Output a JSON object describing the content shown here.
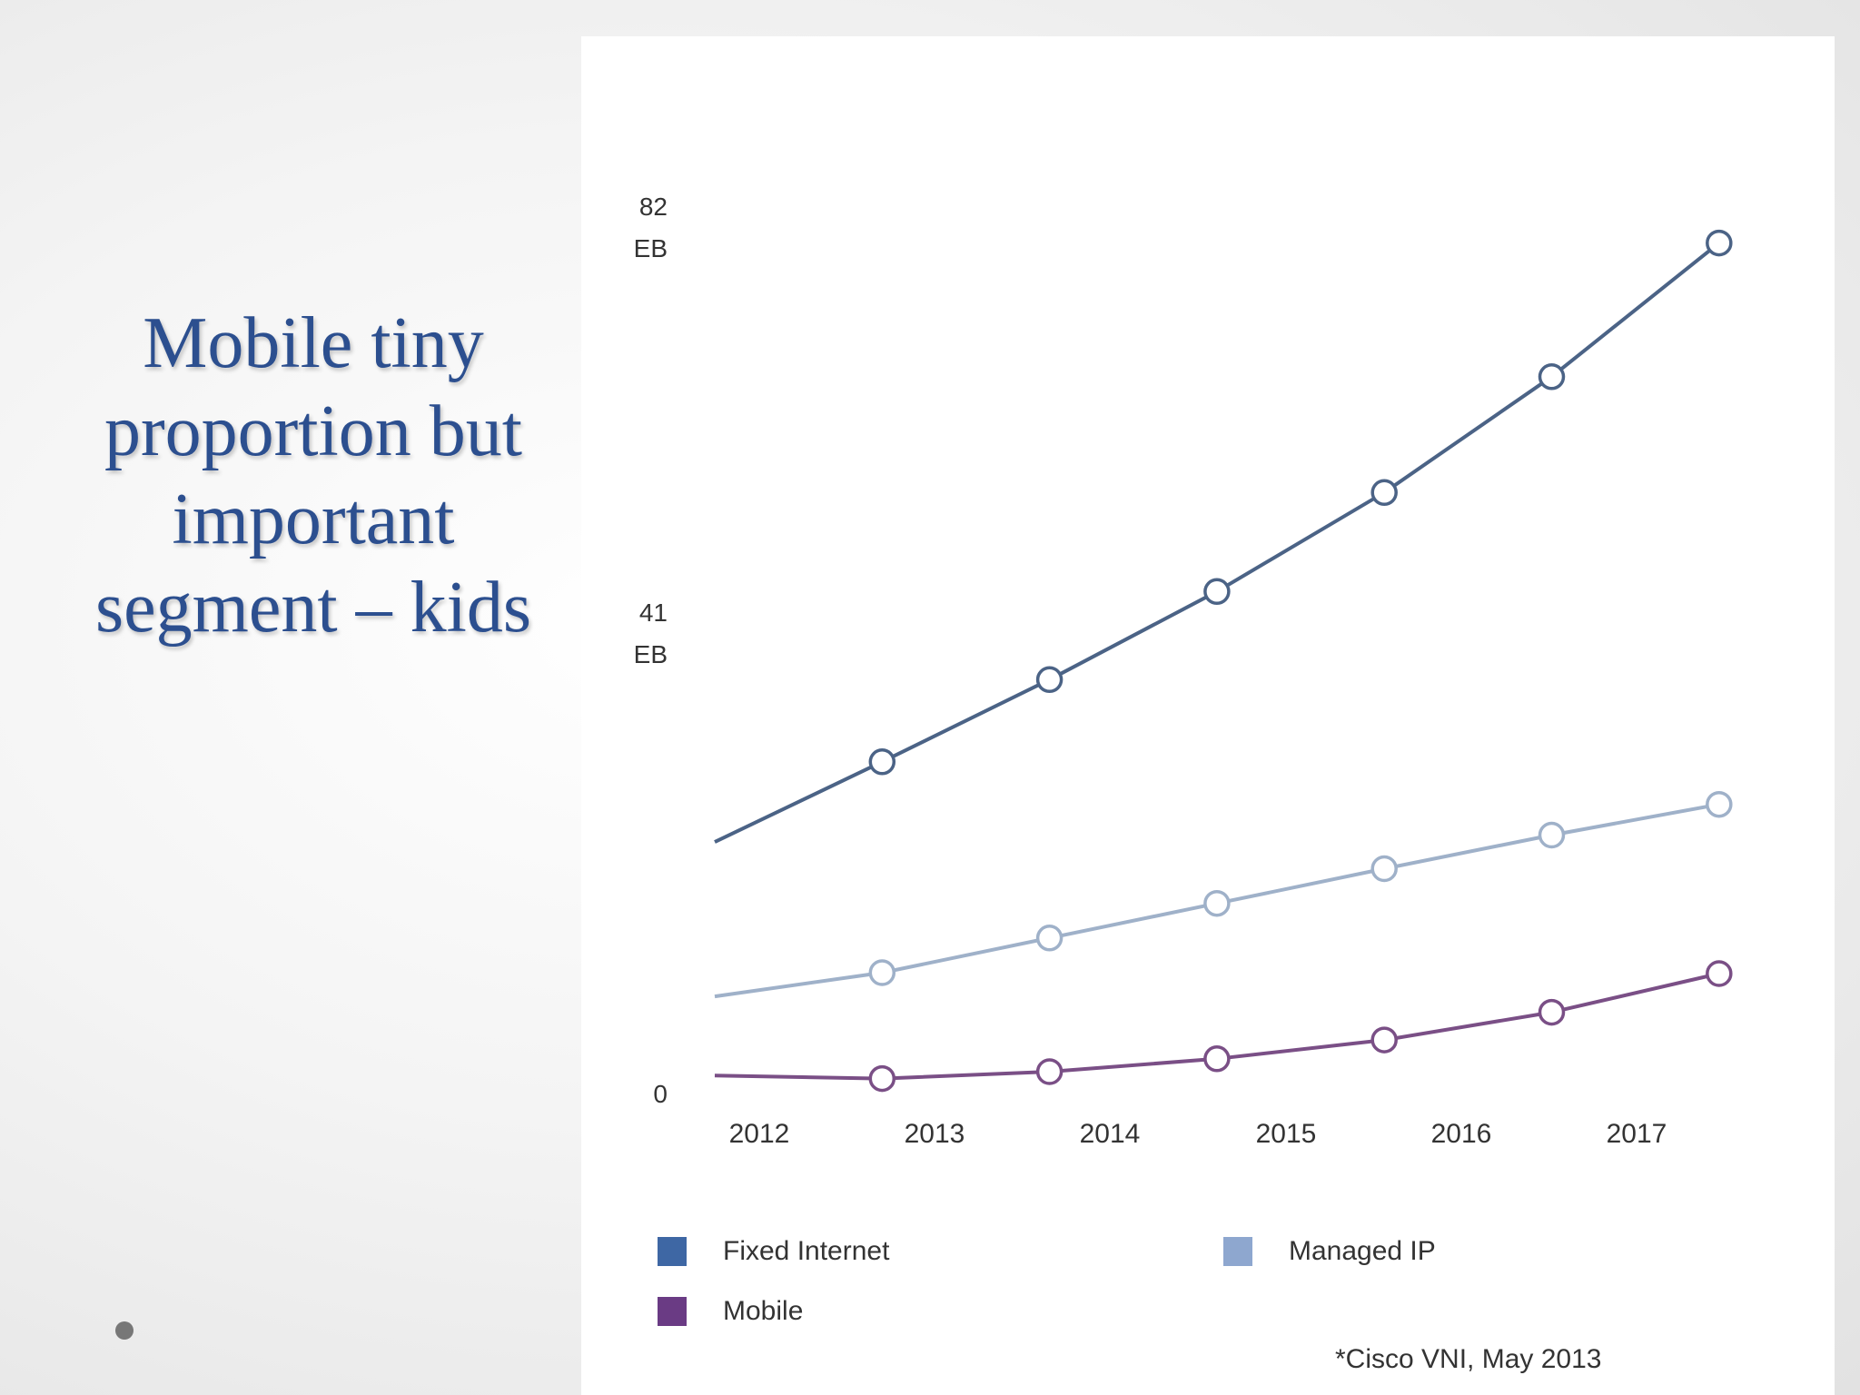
{
  "slide": {
    "title": "Mobile tiny proportion but important segment – kids"
  },
  "chart_data": {
    "type": "line",
    "x": [
      2012,
      2013,
      2014,
      2015,
      2016,
      2017
    ],
    "x_tick_labels": [
      "2012",
      "2013",
      "2014",
      "2015",
      "2016",
      "2017"
    ],
    "y_tick_labels": [
      {
        "value": 82,
        "lines": [
          "82",
          "EB"
        ]
      },
      {
        "value": 41,
        "lines": [
          "41",
          "EB"
        ]
      },
      {
        "value": 0,
        "lines": [
          "0"
        ]
      }
    ],
    "ylim": [
      0,
      82
    ],
    "series": [
      {
        "name": "Fixed Internet",
        "color": "#4b6386",
        "x": [
          2012.0,
          2012.95,
          2013.9,
          2014.85,
          2015.8,
          2016.75,
          2017.7
        ],
        "values": [
          28.8,
          36.9,
          45.2,
          54.1,
          64.1,
          75.8,
          89.3
        ]
      },
      {
        "name": "Managed IP",
        "color": "#9fb1c9",
        "x": [
          2012.0,
          2012.95,
          2013.9,
          2014.85,
          2015.8,
          2016.75,
          2017.7
        ],
        "values": [
          13.2,
          15.6,
          19.1,
          22.6,
          26.1,
          29.5,
          32.6
        ]
      },
      {
        "name": "Mobile",
        "color": "#7a4f86",
        "x": [
          2012.0,
          2012.95,
          2013.9,
          2014.85,
          2015.8,
          2016.75,
          2017.7
        ],
        "values": [
          5.2,
          4.9,
          5.6,
          6.9,
          8.8,
          11.6,
          15.5
        ]
      }
    ],
    "legend": [
      {
        "label": "Fixed Internet",
        "color": "#3e67a4"
      },
      {
        "label": "Managed IP",
        "color": "#8ea7cf"
      },
      {
        "label": "Mobile",
        "color": "#6a3b84"
      }
    ],
    "legend_position": "bottom",
    "grid": false
  },
  "source": "*Cisco VNI, May 2013"
}
